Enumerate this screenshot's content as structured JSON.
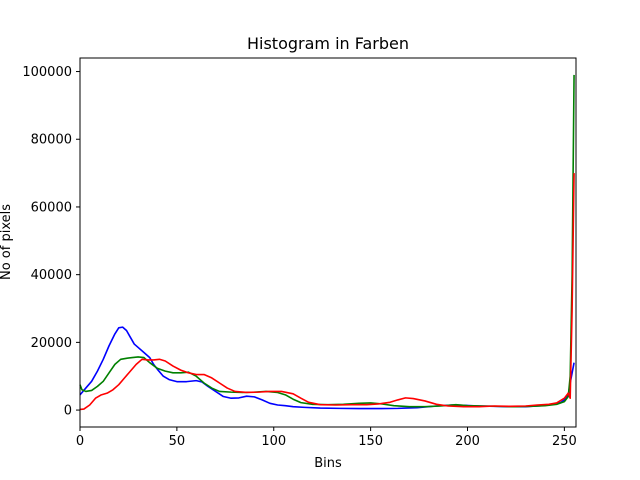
{
  "chart_data": {
    "type": "line",
    "title": "Histogram in Farben",
    "xlabel": "Bins",
    "ylabel": "No of pixels",
    "xlim": [
      0,
      256
    ],
    "ylim": [
      -5000,
      104000
    ],
    "xticks": [
      0,
      50,
      100,
      150,
      200,
      250
    ],
    "yticks": [
      0,
      20000,
      40000,
      60000,
      80000,
      100000
    ],
    "grid": false,
    "legend": "none",
    "series": [
      {
        "color": "#0000ff",
        "points": [
          [
            0,
            4500
          ],
          [
            3,
            6500
          ],
          [
            6,
            8500
          ],
          [
            9,
            11500
          ],
          [
            12,
            15000
          ],
          [
            15,
            19000
          ],
          [
            18,
            22500
          ],
          [
            20,
            24300
          ],
          [
            22,
            24500
          ],
          [
            24,
            23500
          ],
          [
            26,
            21500
          ],
          [
            28,
            19500
          ],
          [
            30,
            18500
          ],
          [
            33,
            17000
          ],
          [
            36,
            15500
          ],
          [
            38,
            13500
          ],
          [
            40,
            12000
          ],
          [
            43,
            10000
          ],
          [
            46,
            9000
          ],
          [
            50,
            8400
          ],
          [
            55,
            8400
          ],
          [
            60,
            8700
          ],
          [
            63,
            8300
          ],
          [
            66,
            7000
          ],
          [
            70,
            5500
          ],
          [
            74,
            4000
          ],
          [
            78,
            3500
          ],
          [
            82,
            3600
          ],
          [
            86,
            4100
          ],
          [
            90,
            3900
          ],
          [
            94,
            3000
          ],
          [
            98,
            2000
          ],
          [
            102,
            1500
          ],
          [
            106,
            1300
          ],
          [
            110,
            1000
          ],
          [
            116,
            800
          ],
          [
            124,
            600
          ],
          [
            134,
            500
          ],
          [
            144,
            450
          ],
          [
            154,
            450
          ],
          [
            164,
            500
          ],
          [
            174,
            700
          ],
          [
            184,
            1200
          ],
          [
            192,
            1500
          ],
          [
            198,
            1400
          ],
          [
            206,
            1200
          ],
          [
            214,
            1100
          ],
          [
            222,
            1000
          ],
          [
            230,
            1000
          ],
          [
            238,
            1300
          ],
          [
            244,
            1700
          ],
          [
            248,
            2200
          ],
          [
            250,
            3000
          ],
          [
            252,
            4500
          ],
          [
            253,
            8000
          ],
          [
            254,
            11000
          ],
          [
            255,
            14000
          ]
        ]
      },
      {
        "color": "#008000",
        "points": [
          [
            0,
            7500
          ],
          [
            1,
            6000
          ],
          [
            3,
            5500
          ],
          [
            6,
            5800
          ],
          [
            9,
            7000
          ],
          [
            12,
            8500
          ],
          [
            15,
            11000
          ],
          [
            18,
            13500
          ],
          [
            21,
            15000
          ],
          [
            24,
            15300
          ],
          [
            27,
            15500
          ],
          [
            30,
            15700
          ],
          [
            33,
            15500
          ],
          [
            36,
            14000
          ],
          [
            40,
            12300
          ],
          [
            44,
            11500
          ],
          [
            48,
            11000
          ],
          [
            52,
            11000
          ],
          [
            56,
            11200
          ],
          [
            60,
            10000
          ],
          [
            64,
            8000
          ],
          [
            68,
            6500
          ],
          [
            72,
            5500
          ],
          [
            78,
            5300
          ],
          [
            84,
            5200
          ],
          [
            90,
            5300
          ],
          [
            96,
            5500
          ],
          [
            102,
            5200
          ],
          [
            106,
            4500
          ],
          [
            110,
            3200
          ],
          [
            114,
            2200
          ],
          [
            120,
            1700
          ],
          [
            128,
            1600
          ],
          [
            136,
            1700
          ],
          [
            144,
            2000
          ],
          [
            150,
            2100
          ],
          [
            156,
            1800
          ],
          [
            162,
            1300
          ],
          [
            170,
            1000
          ],
          [
            178,
            1000
          ],
          [
            186,
            1200
          ],
          [
            194,
            1600
          ],
          [
            200,
            1300
          ],
          [
            208,
            1200
          ],
          [
            216,
            1100
          ],
          [
            224,
            1000
          ],
          [
            232,
            1100
          ],
          [
            240,
            1300
          ],
          [
            246,
            1700
          ],
          [
            250,
            2500
          ],
          [
            252,
            4000
          ],
          [
            253,
            10000
          ],
          [
            254,
            40000
          ],
          [
            255,
            99000
          ]
        ]
      },
      {
        "color": "#ff0000",
        "points": [
          [
            0,
            200
          ],
          [
            2,
            300
          ],
          [
            5,
            1500
          ],
          [
            8,
            3500
          ],
          [
            11,
            4500
          ],
          [
            14,
            5000
          ],
          [
            17,
            6000
          ],
          [
            20,
            7500
          ],
          [
            23,
            9500
          ],
          [
            26,
            11500
          ],
          [
            29,
            13500
          ],
          [
            32,
            15000
          ],
          [
            35,
            14800
          ],
          [
            38,
            14800
          ],
          [
            41,
            15000
          ],
          [
            44,
            14500
          ],
          [
            48,
            13000
          ],
          [
            52,
            11800
          ],
          [
            56,
            11000
          ],
          [
            60,
            10500
          ],
          [
            64,
            10500
          ],
          [
            68,
            9500
          ],
          [
            72,
            8000
          ],
          [
            76,
            6500
          ],
          [
            80,
            5500
          ],
          [
            86,
            5200
          ],
          [
            92,
            5300
          ],
          [
            98,
            5500
          ],
          [
            104,
            5500
          ],
          [
            110,
            4800
          ],
          [
            114,
            3500
          ],
          [
            118,
            2300
          ],
          [
            124,
            1600
          ],
          [
            132,
            1500
          ],
          [
            140,
            1600
          ],
          [
            148,
            1600
          ],
          [
            154,
            1800
          ],
          [
            160,
            2300
          ],
          [
            164,
            3000
          ],
          [
            168,
            3600
          ],
          [
            172,
            3400
          ],
          [
            178,
            2700
          ],
          [
            184,
            1700
          ],
          [
            190,
            1200
          ],
          [
            198,
            1000
          ],
          [
            206,
            1000
          ],
          [
            214,
            1200
          ],
          [
            222,
            1100
          ],
          [
            230,
            1200
          ],
          [
            236,
            1500
          ],
          [
            242,
            1700
          ],
          [
            246,
            2100
          ],
          [
            250,
            3500
          ],
          [
            252,
            5000
          ],
          [
            253,
            3500
          ],
          [
            254,
            30000
          ],
          [
            255,
            70000
          ]
        ]
      }
    ]
  }
}
